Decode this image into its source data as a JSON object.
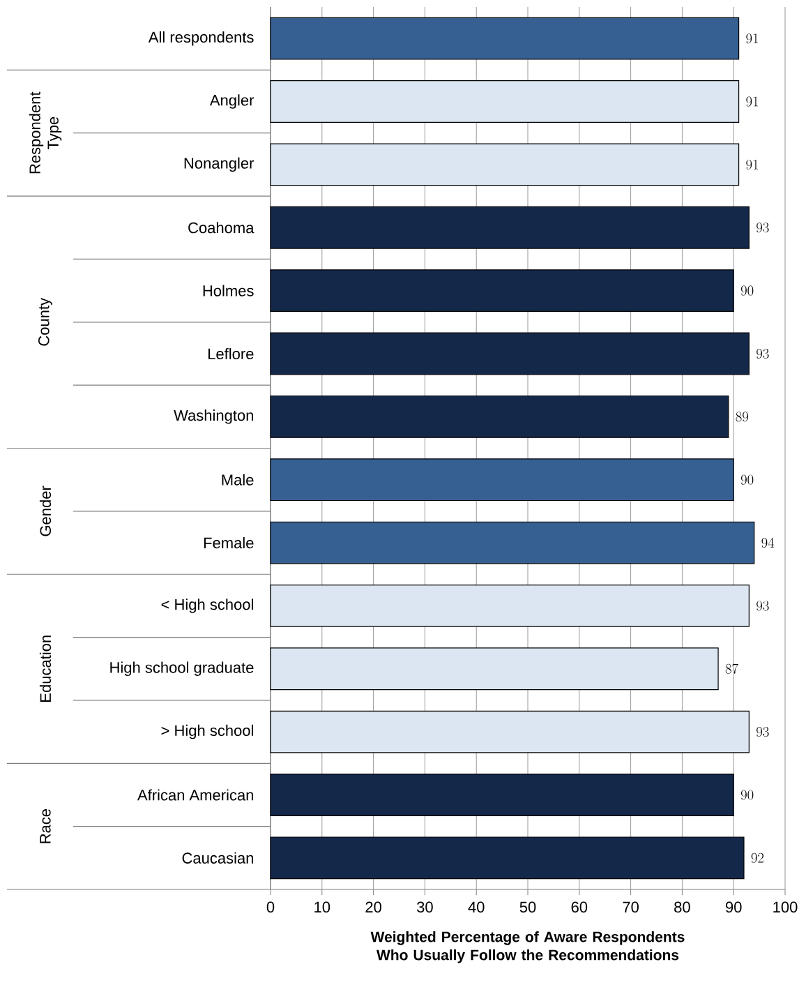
{
  "chart_data": {
    "type": "bar",
    "orientation": "horizontal",
    "xlabel": "Weighted Percentage of Aware Respondents Who Usually Follow the Recommendations",
    "categories": [
      "All respondents",
      "Angler",
      "Nonangler",
      "Coahoma",
      "Holmes",
      "Leflore",
      "Washington",
      "Male",
      "Female",
      "< High school",
      "High school graduate",
      "> High school",
      "African American",
      "Caucasian"
    ],
    "values": [
      91,
      91,
      91,
      93,
      90,
      93,
      89,
      90,
      94,
      93,
      87,
      93,
      90,
      92
    ],
    "colors": [
      "#376092",
      "#dce6f2",
      "#dce6f2",
      "#14284a",
      "#14284a",
      "#14284a",
      "#14284a",
      "#376092",
      "#376092",
      "#dce6f2",
      "#dce6f2",
      "#dce6f2",
      "#14284a",
      "#14284a"
    ],
    "data_labels": true,
    "xlim": [
      0,
      100
    ],
    "xticks": [
      0,
      10,
      20,
      30,
      40,
      50,
      60,
      70,
      80,
      90,
      100
    ],
    "grid": "x",
    "annotations": [
      "Respondent Type",
      "County",
      "Gender",
      "Education",
      "Race"
    ]
  }
}
